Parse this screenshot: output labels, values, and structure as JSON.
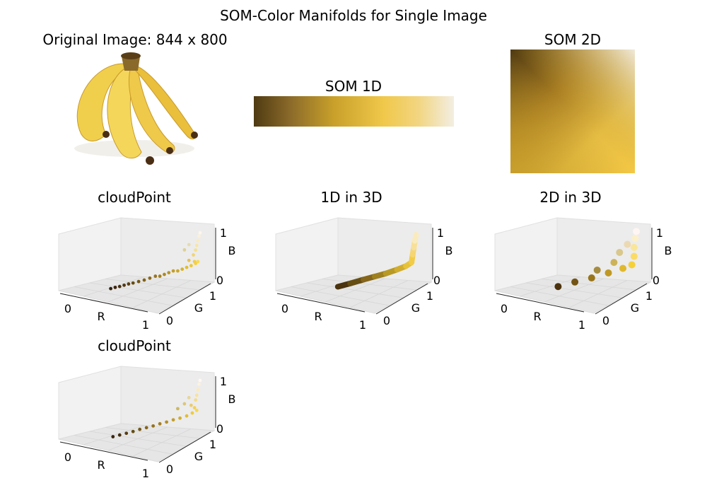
{
  "figure": {
    "suptitle": "SOM-Color Manifolds for Single Image",
    "original_title": "Original Image: 844 x 800",
    "som1d_title": "SOM 1D",
    "som2d_title": "SOM 2D"
  },
  "colors": {
    "dark_brown": "#4f3a12",
    "mid_brown": "#8a6a2a",
    "gold": "#c9a02a",
    "yellow": "#f0c84a",
    "cream": "#f3eee2",
    "pane": "#f2f2f2",
    "banana_light": "#f4d75a",
    "banana_dark": "#e2b532"
  },
  "chart_data": [
    {
      "type": "scatter",
      "title": "cloudPoint",
      "xlabel": "R",
      "ylabel": "G",
      "zlabel": "B",
      "xticks": [
        "0",
        "1"
      ],
      "yticks": [
        "0",
        "1"
      ],
      "zticks": [
        "0",
        "1"
      ],
      "points": [
        [
          0.2,
          0.13,
          0.05
        ],
        [
          0.24,
          0.15,
          0.06
        ],
        [
          0.28,
          0.19,
          0.06
        ],
        [
          0.32,
          0.22,
          0.07
        ],
        [
          0.36,
          0.25,
          0.08
        ],
        [
          0.4,
          0.3,
          0.08
        ],
        [
          0.45,
          0.34,
          0.09
        ],
        [
          0.5,
          0.38,
          0.1
        ],
        [
          0.55,
          0.42,
          0.12
        ],
        [
          0.6,
          0.46,
          0.14
        ],
        [
          0.64,
          0.5,
          0.12
        ],
        [
          0.68,
          0.54,
          0.14
        ],
        [
          0.72,
          0.58,
          0.16
        ],
        [
          0.76,
          0.62,
          0.18
        ],
        [
          0.8,
          0.66,
          0.16
        ],
        [
          0.84,
          0.7,
          0.18
        ],
        [
          0.88,
          0.74,
          0.2
        ],
        [
          0.92,
          0.78,
          0.22
        ],
        [
          0.96,
          0.82,
          0.25
        ],
        [
          0.98,
          0.86,
          0.28
        ],
        [
          0.95,
          0.8,
          0.3
        ],
        [
          0.9,
          0.76,
          0.35
        ],
        [
          0.94,
          0.84,
          0.45
        ],
        [
          0.96,
          0.88,
          0.55
        ],
        [
          0.97,
          0.9,
          0.65
        ],
        [
          0.98,
          0.92,
          0.75
        ],
        [
          0.99,
          0.94,
          0.85
        ],
        [
          1.0,
          0.96,
          0.92
        ],
        [
          0.9,
          0.86,
          0.7
        ],
        [
          0.86,
          0.82,
          0.6
        ]
      ]
    },
    {
      "type": "line",
      "title": "1D in 3D",
      "xlabel": "R",
      "ylabel": "G",
      "zlabel": "B",
      "xticks": [
        "0",
        "1"
      ],
      "yticks": [
        "0",
        "1"
      ],
      "zticks": [
        "0",
        "1"
      ],
      "points": [
        [
          0.29,
          0.2,
          0.05
        ],
        [
          0.4,
          0.3,
          0.07
        ],
        [
          0.52,
          0.4,
          0.1
        ],
        [
          0.62,
          0.5,
          0.12
        ],
        [
          0.72,
          0.6,
          0.14
        ],
        [
          0.82,
          0.68,
          0.18
        ],
        [
          0.9,
          0.76,
          0.22
        ],
        [
          0.95,
          0.8,
          0.28
        ],
        [
          0.96,
          0.84,
          0.45
        ],
        [
          0.97,
          0.88,
          0.6
        ],
        [
          0.98,
          0.92,
          0.75
        ],
        [
          0.99,
          0.95,
          0.88
        ]
      ]
    },
    {
      "type": "scatter",
      "title": "2D in 3D",
      "xlabel": "R",
      "ylabel": "G",
      "zlabel": "B",
      "xticks": [
        "0",
        "1"
      ],
      "yticks": [
        "0",
        "1"
      ],
      "zticks": [
        "0",
        "1"
      ],
      "points": [
        [
          0.3,
          0.2,
          0.05
        ],
        [
          0.45,
          0.33,
          0.08
        ],
        [
          0.6,
          0.46,
          0.1
        ],
        [
          0.75,
          0.6,
          0.14
        ],
        [
          0.88,
          0.72,
          0.18
        ],
        [
          0.96,
          0.82,
          0.22
        ],
        [
          0.98,
          0.86,
          0.4
        ],
        [
          0.98,
          0.9,
          0.6
        ],
        [
          0.99,
          0.94,
          0.8
        ],
        [
          1.0,
          0.96,
          0.95
        ],
        [
          0.8,
          0.7,
          0.35
        ],
        [
          0.65,
          0.55,
          0.25
        ],
        [
          0.85,
          0.78,
          0.55
        ],
        [
          0.92,
          0.85,
          0.7
        ]
      ]
    },
    {
      "type": "scatter",
      "title": "cloudPoint",
      "xlabel": "R",
      "ylabel": "G",
      "zlabel": "B",
      "xticks": [
        "0",
        "1"
      ],
      "yticks": [
        "0",
        "1"
      ],
      "zticks": [
        "0",
        "1"
      ],
      "points": [
        [
          0.22,
          0.14,
          0.05
        ],
        [
          0.28,
          0.18,
          0.06
        ],
        [
          0.34,
          0.24,
          0.07
        ],
        [
          0.4,
          0.3,
          0.08
        ],
        [
          0.46,
          0.35,
          0.1
        ],
        [
          0.52,
          0.4,
          0.11
        ],
        [
          0.58,
          0.45,
          0.12
        ],
        [
          0.64,
          0.5,
          0.14
        ],
        [
          0.7,
          0.56,
          0.15
        ],
        [
          0.76,
          0.62,
          0.17
        ],
        [
          0.82,
          0.68,
          0.18
        ],
        [
          0.88,
          0.74,
          0.2
        ],
        [
          0.93,
          0.8,
          0.24
        ],
        [
          0.97,
          0.85,
          0.28
        ],
        [
          0.95,
          0.82,
          0.35
        ],
        [
          0.92,
          0.8,
          0.42
        ],
        [
          0.96,
          0.86,
          0.52
        ],
        [
          0.97,
          0.89,
          0.62
        ],
        [
          0.98,
          0.92,
          0.74
        ],
        [
          0.99,
          0.95,
          0.86
        ],
        [
          1.0,
          0.97,
          0.94
        ],
        [
          0.9,
          0.84,
          0.6
        ],
        [
          0.86,
          0.78,
          0.48
        ],
        [
          0.8,
          0.72,
          0.4
        ]
      ]
    }
  ]
}
